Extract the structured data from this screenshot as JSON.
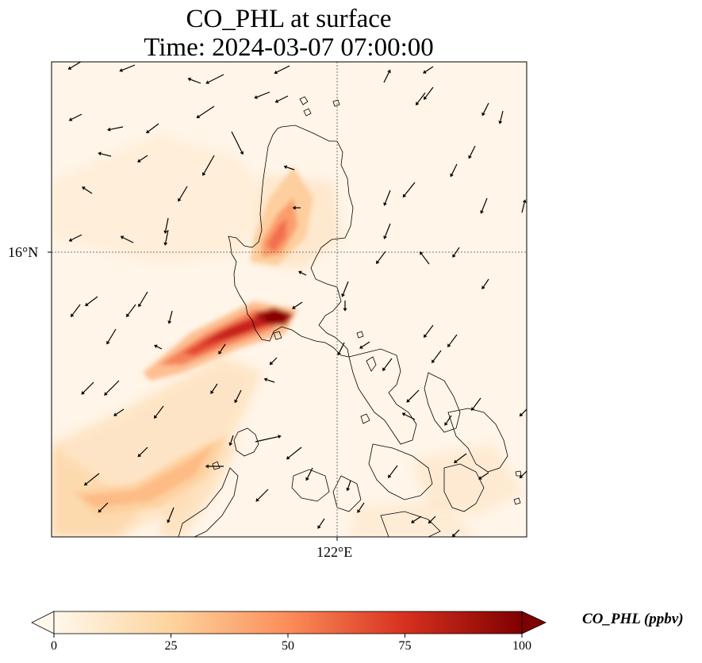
{
  "title": {
    "line1": "CO_PHL at surface",
    "line2": "Time: 2024-03-07 07:00:00"
  },
  "map": {
    "lat_gridline_label": "16°N",
    "lon_gridline_label": "122°E",
    "colormap": "OrRd",
    "variable": "CO_PHL",
    "level": "surface",
    "vectors": "wind arrows"
  },
  "colorbar": {
    "label": "CO_PHL (ppbv)",
    "min": 0,
    "max": 100,
    "extend": "both",
    "ticks": [
      "0",
      "25",
      "50",
      "75",
      "100"
    ],
    "colors": [
      "#fff7ec",
      "#fdd49e",
      "#fc8d59",
      "#d7301f",
      "#7f0000"
    ]
  }
}
